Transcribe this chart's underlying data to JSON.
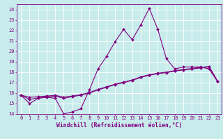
{
  "xlabel": "Windchill (Refroidissement éolien,°C)",
  "background_color": "#c8ecec",
  "line_color": "#800080",
  "grid_color": "#ffffff",
  "x_hours": [
    0,
    1,
    2,
    3,
    4,
    5,
    6,
    7,
    8,
    9,
    10,
    11,
    12,
    13,
    14,
    15,
    16,
    17,
    18,
    19,
    20,
    21,
    22,
    23
  ],
  "line1_y": [
    15.8,
    15.0,
    15.5,
    15.6,
    15.5,
    14.0,
    14.2,
    14.5,
    16.3,
    18.3,
    19.5,
    20.9,
    22.1,
    21.1,
    22.5,
    24.1,
    22.1,
    19.3,
    18.3,
    18.5,
    18.5,
    18.5,
    18.3,
    17.1
  ],
  "line2_y": [
    15.8,
    15.4,
    15.55,
    15.65,
    15.7,
    15.5,
    15.65,
    15.8,
    16.0,
    16.3,
    16.55,
    16.8,
    17.0,
    17.2,
    17.5,
    17.7,
    17.85,
    17.95,
    18.1,
    18.2,
    18.3,
    18.4,
    18.5,
    17.1
  ],
  "line3_y": [
    15.8,
    15.6,
    15.65,
    15.72,
    15.78,
    15.62,
    15.72,
    15.85,
    16.05,
    16.35,
    16.6,
    16.85,
    17.05,
    17.25,
    17.55,
    17.75,
    17.9,
    18.0,
    18.15,
    18.25,
    18.35,
    18.45,
    18.55,
    17.15
  ],
  "ylim": [
    14,
    24.5
  ],
  "xlim": [
    -0.5,
    23.5
  ],
  "yticks": [
    14,
    15,
    16,
    17,
    18,
    19,
    20,
    21,
    22,
    23,
    24
  ],
  "xticks": [
    0,
    1,
    2,
    3,
    4,
    5,
    6,
    7,
    8,
    9,
    10,
    11,
    12,
    13,
    14,
    15,
    16,
    17,
    18,
    19,
    20,
    21,
    22,
    23
  ],
  "tick_fontsize": 5.0,
  "xlabel_fontsize": 5.8,
  "marker_size": 2.0
}
